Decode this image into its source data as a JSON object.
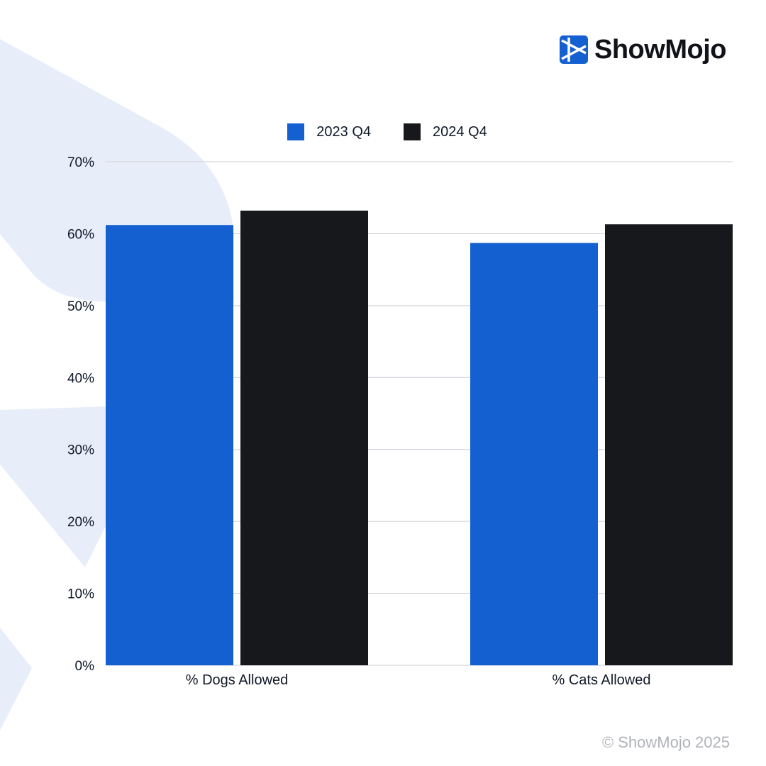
{
  "brand": {
    "name": "ShowMojo",
    "copyright": "© ShowMojo 2025"
  },
  "colors": {
    "series_2023": "#1460d1",
    "series_2024": "#17181b",
    "grid": "#d3d6db",
    "background_shape": "#e8eef9",
    "logo_blue": "#1460d1"
  },
  "chart_data": {
    "type": "bar",
    "categories": [
      "% Dogs Allowed",
      "% Cats Allowed"
    ],
    "series": [
      {
        "name": "2023 Q4",
        "values": [
          61.2,
          58.7
        ]
      },
      {
        "name": "2024 Q4",
        "values": [
          63.2,
          61.3
        ]
      }
    ],
    "yticks": [
      "0%",
      "10%",
      "20%",
      "30%",
      "40%",
      "50%",
      "60%",
      "70%"
    ],
    "ylim": [
      0,
      70
    ],
    "grid": true,
    "legend_position": "top-center",
    "title": "",
    "xlabel": "",
    "ylabel": ""
  }
}
